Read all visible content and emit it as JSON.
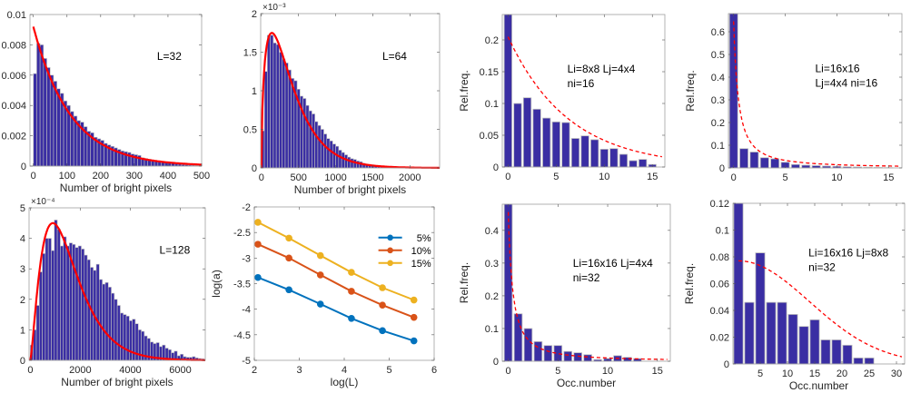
{
  "figure": {
    "colors": {
      "bar_fill": "#3a2ea3",
      "bar_edge": "#bfbfbf",
      "fit_line": "#ff0000",
      "axis": "#262626",
      "series_5": "#0072bd",
      "series_10": "#d95319",
      "series_15": "#edb120"
    }
  },
  "chart_data": [
    {
      "id": "p1",
      "type": "bar",
      "title": "",
      "annotation": "L=32",
      "xlabel": "Number of bright pixels",
      "ylabel": "",
      "xlim": [
        -10,
        500
      ],
      "ylim": [
        0,
        0.01
      ],
      "xticks": [
        0,
        100,
        200,
        300,
        400,
        500
      ],
      "yticks": [
        0,
        0.002,
        0.004,
        0.006,
        0.008,
        0.01
      ],
      "ytick_labels": [
        "0",
        "0.002",
        "0.004",
        "0.006",
        "0.008",
        "0.01"
      ],
      "exponent_label": "",
      "bin_start": 0,
      "bin_width": 10,
      "values": [
        0.0061,
        0.0081,
        0.008,
        0.0071,
        0.0065,
        0.006,
        0.0056,
        0.0051,
        0.0048,
        0.0043,
        0.004,
        0.0036,
        0.0033,
        0.003,
        0.0029,
        0.0026,
        0.0023,
        0.0022,
        0.0019,
        0.0018,
        0.0017,
        0.0015,
        0.0014,
        0.0013,
        0.0012,
        0.0011,
        0.001,
        0.00095,
        0.0009,
        0.0008,
        0.00075,
        0.0007,
        0.00055,
        0.0005,
        0.00045,
        0.0004,
        0.00035,
        0.0003,
        0.00028,
        0.00025,
        0.0002,
        0.00018,
        0.00015,
        0.00013,
        0.0001,
        9e-05,
        7e-05,
        6e-05,
        5e-05,
        4e-05
      ],
      "fit": {
        "kind": "exponential",
        "a": 0.0092,
        "scale": 110
      }
    },
    {
      "id": "p2",
      "type": "bar",
      "title": "",
      "annotation": "L=64",
      "xlabel": "Number of bright pixels",
      "ylabel": "",
      "xlim": [
        -10,
        2400
      ],
      "ylim": [
        0,
        2
      ],
      "xticks": [
        0,
        500,
        1000,
        1500,
        2000
      ],
      "yticks": [
        0,
        0.5,
        1,
        1.5,
        2
      ],
      "ytick_labels": [
        "0",
        "0.5",
        "1",
        "1.5",
        "2"
      ],
      "exponent_label": "×10⁻³",
      "bin_start": 0,
      "bin_width": 40,
      "values": [
        0.48,
        1.25,
        1.72,
        1.72,
        1.62,
        1.6,
        1.5,
        1.41,
        1.36,
        1.27,
        1.16,
        1.13,
        1.02,
        0.93,
        0.9,
        0.81,
        0.74,
        0.7,
        0.6,
        0.55,
        0.5,
        0.44,
        0.38,
        0.35,
        0.31,
        0.28,
        0.23,
        0.2,
        0.17,
        0.14,
        0.12,
        0.11,
        0.09,
        0.08,
        0.06,
        0.05,
        0.04,
        0.035,
        0.03,
        0.02,
        0.018,
        0.015,
        0.012,
        0.01,
        0.008,
        0.006,
        0.005,
        0.004,
        0.003,
        0.002
      ],
      "fit": {
        "kind": "gamma",
        "peak": 1.75,
        "mode": 140,
        "shape": 1.55
      }
    },
    {
      "id": "p3",
      "type": "bar",
      "title": "",
      "annotation": [
        "Li=8x8 Lj=4x4",
        "ni=16"
      ],
      "xlabel": "",
      "ylabel": "Rel.freq.",
      "xlim": [
        -0.6,
        16.3
      ],
      "ylim": [
        0,
        0.24
      ],
      "xticks": [
        0,
        5,
        10,
        15
      ],
      "yticks": [
        0,
        0.05,
        0.1,
        0.15,
        0.2
      ],
      "ytick_labels": [
        "0",
        "0.05",
        "0.1",
        "0.15",
        "0.2"
      ],
      "exponent_label": "",
      "x": [
        0,
        1,
        2,
        3,
        4,
        5,
        6,
        7,
        8,
        9,
        10,
        11,
        12,
        13,
        14,
        15
      ],
      "values": [
        0.24,
        0.1,
        0.109,
        0.091,
        0.077,
        0.071,
        0.07,
        0.045,
        0.049,
        0.043,
        0.028,
        0.029,
        0.02,
        0.01,
        0.012,
        0.004
      ],
      "fit": {
        "kind": "exponential-dashed",
        "a": 0.205,
        "scale": 6.3,
        "x_range": [
          0,
          16
        ]
      }
    },
    {
      "id": "p4",
      "type": "bar",
      "title": "",
      "annotation": [
        "Li=16x16",
        "Lj=4x4 ni=16"
      ],
      "xlabel": "",
      "ylabel": "Rel.freq.",
      "xlim": [
        -0.5,
        16.3
      ],
      "ylim": [
        0,
        0.68
      ],
      "xticks": [
        0,
        5,
        10,
        15
      ],
      "yticks": [
        0,
        0.1,
        0.2,
        0.3,
        0.4,
        0.5,
        0.6
      ],
      "ytick_labels": [
        "0",
        "0.1",
        "0.2",
        "0.3",
        "0.4",
        "0.5",
        "0.6"
      ],
      "exponent_label": "",
      "x": [
        0,
        1,
        2,
        3,
        4,
        5,
        6,
        7,
        8,
        9,
        10,
        11,
        12,
        13,
        14,
        15
      ],
      "values": [
        0.68,
        0.085,
        0.07,
        0.045,
        0.04,
        0.025,
        0.015,
        0.012,
        0.01,
        0.008,
        0.007,
        0.005,
        0.004,
        0.003,
        0.002,
        0.001
      ],
      "fit": {
        "kind": "power-dashed",
        "x_range": [
          0,
          16
        ]
      }
    },
    {
      "id": "p5",
      "type": "bar",
      "title": "",
      "annotation": "L=128",
      "xlabel": "Number of bright pixels",
      "ylabel": "",
      "xlim": [
        -50,
        7000
      ],
      "ylim": [
        0,
        5
      ],
      "xticks": [
        0,
        2000,
        4000,
        6000
      ],
      "yticks": [
        0,
        1,
        2,
        3,
        4,
        5
      ],
      "ytick_labels": [
        "0",
        "1",
        "2",
        "3",
        "4",
        "5"
      ],
      "exponent_label": "×10⁻⁴",
      "bin_start": 0,
      "bin_width": 120,
      "values": [
        0.5,
        1.0,
        1.8,
        2.9,
        3.5,
        4.0,
        4.0,
        3.6,
        4.6,
        4.3,
        3.75,
        4.05,
        3.75,
        3.85,
        3.8,
        3.7,
        3.75,
        3.65,
        3.45,
        3.3,
        3.05,
        2.95,
        3.15,
        2.65,
        2.5,
        2.55,
        2.4,
        2.2,
        2.0,
        1.8,
        1.55,
        1.5,
        1.45,
        1.3,
        1.35,
        1.2,
        1.0,
        0.95,
        0.8,
        0.72,
        0.6,
        0.55,
        0.58,
        0.45,
        0.5,
        0.4,
        0.35,
        0.25,
        0.3,
        0.15,
        0.2,
        0.12,
        0.1,
        0.1,
        0.12,
        0.08,
        0.06,
        0.05
      ],
      "fit": {
        "kind": "gamma",
        "peak": 4.5,
        "mode": 900,
        "shape": 2.4
      }
    },
    {
      "id": "p6",
      "type": "line",
      "title": "",
      "annotation": "",
      "xlabel": "log(L)",
      "ylabel": "log(a)",
      "xlim": [
        2,
        6
      ],
      "ylim": [
        -5,
        -2
      ],
      "xticks": [
        2,
        3,
        4,
        5,
        6
      ],
      "yticks": [
        -5,
        -4.5,
        -4,
        -3.5,
        -3,
        -2.5,
        -2
      ],
      "ytick_labels": [
        "-5",
        "-4.5",
        "-4",
        "-3.5",
        "-3",
        "-2.5",
        "-2"
      ],
      "x": [
        2.08,
        2.77,
        3.47,
        4.16,
        4.85,
        5.55
      ],
      "series": [
        {
          "name": "5%",
          "color_key": "series_5",
          "values": [
            -3.38,
            -3.62,
            -3.9,
            -4.18,
            -4.42,
            -4.62
          ]
        },
        {
          "name": "10%",
          "color_key": "series_10",
          "values": [
            -2.73,
            -3.0,
            -3.33,
            -3.65,
            -3.92,
            -4.16
          ]
        },
        {
          "name": "15%",
          "color_key": "series_15",
          "values": [
            -2.3,
            -2.61,
            -2.95,
            -3.28,
            -3.58,
            -3.82
          ]
        }
      ],
      "legend": {
        "placement": "top-right",
        "entries": [
          "5%",
          "10%",
          "15%"
        ]
      },
      "grid": false
    },
    {
      "id": "p7",
      "type": "bar",
      "title": "",
      "annotation": [
        "Li=16x16 Lj=4x4",
        "ni=32"
      ],
      "xlabel": "Occ.number",
      "ylabel": "Rel.freq.",
      "xlim": [
        -0.6,
        16.3
      ],
      "ylim": [
        0,
        0.48
      ],
      "xticks": [
        0,
        5,
        10,
        15
      ],
      "yticks": [
        0,
        0.1,
        0.2,
        0.3,
        0.4
      ],
      "ytick_labels": [
        "0",
        "0.1",
        "0.2",
        "0.3",
        "0.4"
      ],
      "exponent_label": "",
      "x": [
        0,
        1,
        2,
        3,
        4,
        5,
        6,
        7,
        8,
        9,
        10,
        11,
        12,
        13,
        14,
        15
      ],
      "values": [
        0.48,
        0.145,
        0.1,
        0.06,
        0.048,
        0.048,
        0.03,
        0.026,
        0.02,
        0.005,
        0.008,
        0.017,
        0.012,
        0.008,
        0.0,
        0.0
      ],
      "fit": {
        "kind": "power-dashed",
        "x_range": [
          0,
          16
        ]
      }
    },
    {
      "id": "p8",
      "type": "bar",
      "title": "",
      "annotation": [
        "Li=16x16 Lj=8x8",
        "ni=32"
      ],
      "xlabel": "Occ.number",
      "ylabel": "Rel.freq.",
      "xlim": [
        0,
        31.5
      ],
      "ylim": [
        0,
        0.12
      ],
      "xticks": [
        5,
        10,
        15,
        20,
        25,
        30
      ],
      "yticks": [
        0,
        0.02,
        0.04,
        0.06,
        0.08,
        0.1,
        0.12
      ],
      "ytick_labels": [
        "0",
        "0.02",
        "0.04",
        "0.06",
        "0.08",
        "0.1",
        "0.12"
      ],
      "exponent_label": "",
      "x": [
        1,
        3,
        5,
        7,
        9,
        11,
        13,
        15,
        17,
        19,
        21,
        23,
        25
      ],
      "bar_width": 1.7,
      "values": [
        0.12,
        0.046,
        0.083,
        0.046,
        0.046,
        0.037,
        0.028,
        0.033,
        0.018,
        0.018,
        0.014,
        0.0045,
        0.0045
      ],
      "fit": {
        "kind": "gaussian-tail-dashed",
        "a": 0.077,
        "x0": 1,
        "sigma": 13,
        "x_range": [
          1,
          31
        ]
      }
    }
  ]
}
